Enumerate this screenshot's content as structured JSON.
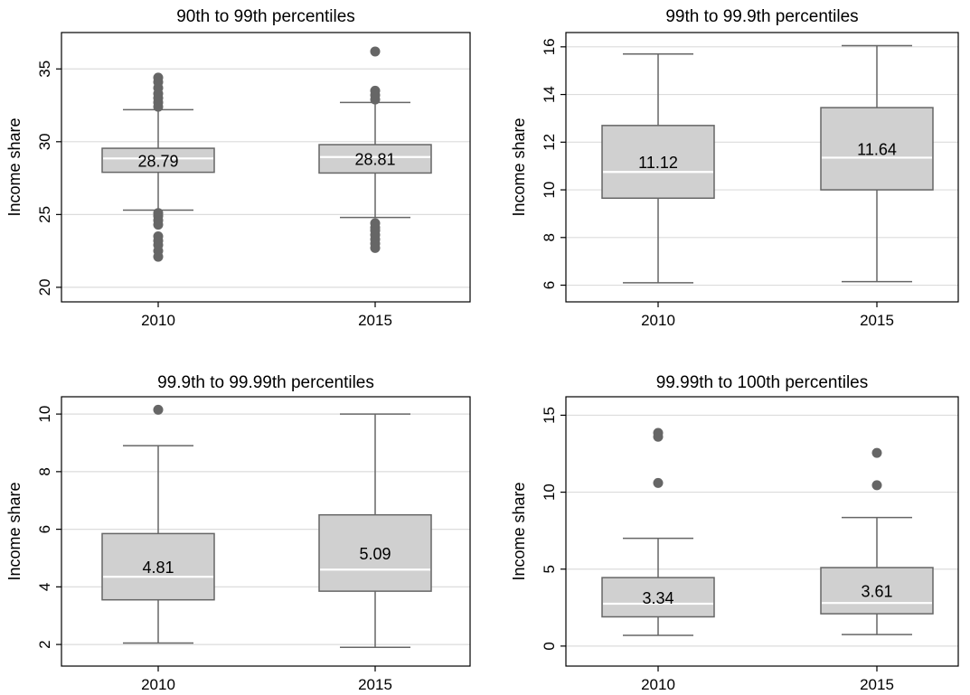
{
  "colors": {
    "box_fill": "#d0d0d0",
    "box_stroke": "#666666",
    "median_line": "#ffffff",
    "outlier": "#666666",
    "grid": "#dcdcdc",
    "frame": "#000000"
  },
  "chart_data": [
    {
      "type": "box",
      "title": "90th to 99th percentiles",
      "ylabel": "Income share",
      "ylim": [
        19,
        37.5
      ],
      "yticks": [
        20,
        25,
        30,
        35
      ],
      "categories": [
        "2010",
        "2015"
      ],
      "boxes": [
        {
          "category": "2010",
          "q1": 27.9,
          "median": 28.85,
          "q3": 29.55,
          "whisker_low": 25.3,
          "whisker_high": 32.2,
          "label": "28.79",
          "outliers": [
            22.1,
            22.5,
            22.9,
            23.2,
            23.5,
            24.3,
            24.6,
            24.9,
            25.1,
            32.4,
            32.7,
            33.0,
            33.3,
            33.7,
            34.1,
            34.4
          ]
        },
        {
          "category": "2015",
          "q1": 27.85,
          "median": 28.95,
          "q3": 29.8,
          "whisker_low": 24.8,
          "whisker_high": 32.7,
          "label": "28.81",
          "outliers": [
            22.7,
            23.0,
            23.3,
            23.6,
            23.9,
            24.1,
            24.4,
            32.9,
            33.2,
            33.5,
            36.2
          ]
        }
      ]
    },
    {
      "type": "box",
      "title": "99th to 99.9th percentiles",
      "ylabel": "Income share",
      "ylim": [
        5.3,
        16.6
      ],
      "yticks": [
        6,
        8,
        10,
        12,
        14,
        16
      ],
      "categories": [
        "2010",
        "2015"
      ],
      "boxes": [
        {
          "category": "2010",
          "q1": 9.65,
          "median": 10.75,
          "q3": 12.7,
          "whisker_low": 6.1,
          "whisker_high": 15.7,
          "label": "11.12",
          "outliers": []
        },
        {
          "category": "2015",
          "q1": 10.0,
          "median": 11.35,
          "q3": 13.45,
          "whisker_low": 6.15,
          "whisker_high": 16.05,
          "label": "11.64",
          "outliers": []
        }
      ]
    },
    {
      "type": "box",
      "title": "99.9th to 99.99th percentiles",
      "ylabel": "Income share",
      "ylim": [
        1.25,
        10.6
      ],
      "yticks": [
        2,
        4,
        6,
        8,
        10
      ],
      "categories": [
        "2010",
        "2015"
      ],
      "boxes": [
        {
          "category": "2010",
          "q1": 3.55,
          "median": 4.35,
          "q3": 5.85,
          "whisker_low": 2.05,
          "whisker_high": 8.9,
          "label": "4.81",
          "outliers": [
            10.15
          ]
        },
        {
          "category": "2015",
          "q1": 3.85,
          "median": 4.6,
          "q3": 6.5,
          "whisker_low": 1.9,
          "whisker_high": 10.0,
          "label": "5.09",
          "outliers": []
        }
      ]
    },
    {
      "type": "box",
      "title": "99.99th to 100th percentiles",
      "ylabel": "Income share",
      "ylim": [
        -1.3,
        16.2
      ],
      "yticks": [
        0,
        5,
        10,
        15
      ],
      "categories": [
        "2010",
        "2015"
      ],
      "boxes": [
        {
          "category": "2010",
          "q1": 1.9,
          "median": 2.75,
          "q3": 4.45,
          "whisker_low": 0.7,
          "whisker_high": 7.0,
          "label": "3.34",
          "outliers": [
            10.6,
            13.6,
            13.85
          ]
        },
        {
          "category": "2015",
          "q1": 2.1,
          "median": 2.8,
          "q3": 5.1,
          "whisker_low": 0.75,
          "whisker_high": 8.35,
          "label": "3.61",
          "outliers": [
            10.45,
            12.55
          ]
        }
      ]
    }
  ]
}
